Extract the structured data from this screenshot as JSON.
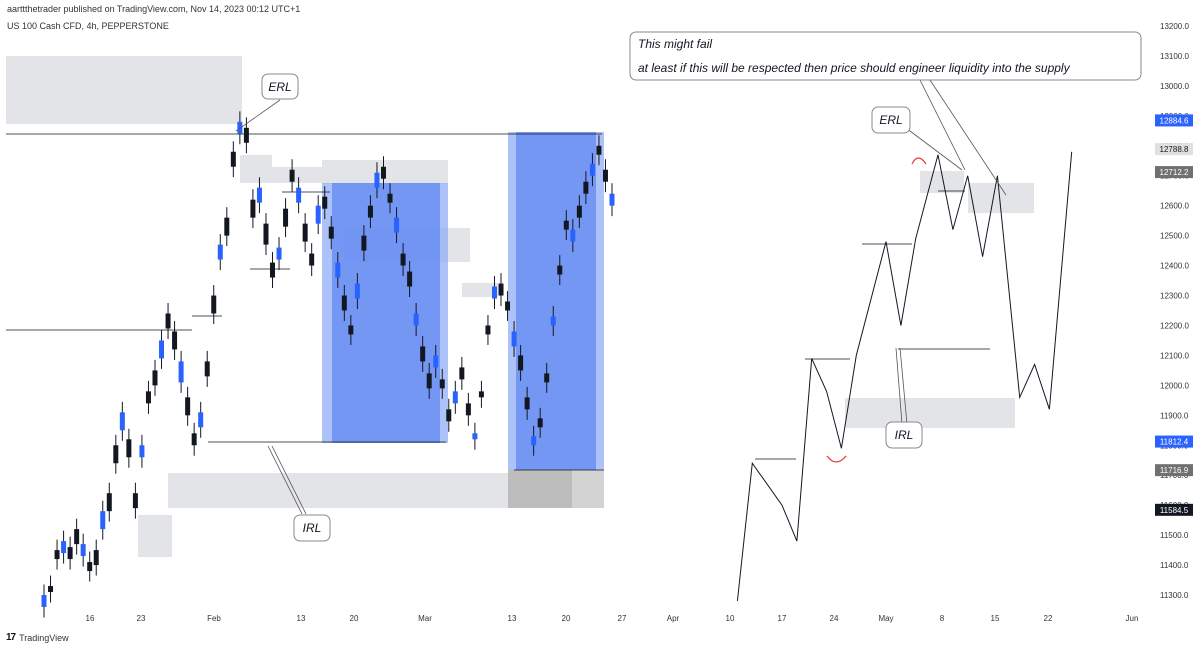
{
  "header": {
    "published": "aarttthetrader published on TradingView.com, Nov 14, 2023 00:12 UTC+1",
    "symbol": "US 100 Cash CFD, 4h, PEPPERSTONE"
  },
  "footer": {
    "logo": "17",
    "brand": "TradingView"
  },
  "colors": {
    "candle": "#131722",
    "zone_gray": "#e3e4e8",
    "zone_dark": "#bdbdbd",
    "range_blue": "#2962ff",
    "range_blue_light": "#90aef7",
    "highlight_tag": "#2962ff",
    "tag_gray": "#707070",
    "arc_red": "#e53935"
  },
  "chart_data": {
    "type": "line",
    "title": "US 100 Cash CFD, 4h, PEPPERSTONE",
    "x_ticks": [
      "16",
      "23",
      "Feb",
      "13",
      "20",
      "Mar",
      "13",
      "20",
      "27",
      "Apr",
      "10",
      "17",
      "24",
      "May",
      "8",
      "15",
      "22",
      "Jun"
    ],
    "y_ticks": [
      13200,
      13100,
      13000,
      12900,
      12800,
      12700,
      12600,
      12500,
      12400,
      12300,
      12200,
      12100,
      12000,
      11900,
      11800,
      11700,
      11600,
      11500,
      11400,
      11300
    ],
    "ylim": [
      11250,
      13250
    ],
    "price_tags": [
      {
        "value": 12884.6,
        "label": "12884.6",
        "style": "blue"
      },
      {
        "value": 12788.8,
        "label": "12788.8",
        "style": "lightgray"
      },
      {
        "value": 12712.2,
        "label": "12712.2",
        "style": "gray"
      },
      {
        "value": 11812.4,
        "label": "11812.4",
        "style": "blue"
      },
      {
        "value": 11716.9,
        "label": "11716.9",
        "style": "gray"
      },
      {
        "value": 11584.5,
        "label": "11584.5",
        "style": "black"
      }
    ],
    "series": [
      {
        "kind": "price",
        "points": [
          [
            11300,
            11260
          ],
          [
            11330,
            11310
          ],
          [
            11450,
            11420
          ],
          [
            11480,
            11440
          ],
          [
            11460,
            11420
          ],
          [
            11520,
            11470
          ],
          [
            11470,
            11430
          ],
          [
            11410,
            11380
          ],
          [
            11450,
            11400
          ],
          [
            11580,
            11520
          ],
          [
            11640,
            11580
          ],
          [
            11800,
            11740
          ],
          [
            11910,
            11850
          ],
          [
            11820,
            11760
          ],
          [
            11640,
            11590
          ],
          [
            11800,
            11760
          ],
          [
            11980,
            11940
          ],
          [
            12050,
            12000
          ],
          [
            12150,
            12090
          ],
          [
            12240,
            12190
          ],
          [
            12180,
            12120
          ],
          [
            12080,
            12010
          ],
          [
            11960,
            11900
          ],
          [
            11840,
            11800
          ],
          [
            11910,
            11860
          ],
          [
            12080,
            12030
          ],
          [
            12300,
            12240
          ],
          [
            12470,
            12420
          ],
          [
            12560,
            12500
          ],
          [
            12780,
            12730
          ],
          [
            12880,
            12840
          ],
          [
            12860,
            12810
          ],
          [
            12620,
            12560
          ],
          [
            12660,
            12610
          ],
          [
            12540,
            12470
          ],
          [
            12410,
            12360
          ],
          [
            12460,
            12420
          ],
          [
            12590,
            12530
          ],
          [
            12720,
            12680
          ],
          [
            12660,
            12610
          ],
          [
            12540,
            12480
          ],
          [
            12440,
            12400
          ],
          [
            12600,
            12540
          ],
          [
            12630,
            12590
          ],
          [
            12530,
            12490
          ],
          [
            12410,
            12360
          ],
          [
            12300,
            12250
          ],
          [
            12200,
            12170
          ],
          [
            12340,
            12290
          ],
          [
            12500,
            12450
          ],
          [
            12600,
            12560
          ],
          [
            12710,
            12660
          ],
          [
            12730,
            12690
          ],
          [
            12640,
            12610
          ],
          [
            12560,
            12510
          ],
          [
            12440,
            12400
          ],
          [
            12380,
            12330
          ],
          [
            12240,
            12200
          ],
          [
            12130,
            12080
          ],
          [
            12040,
            11990
          ],
          [
            12100,
            12060
          ],
          [
            12020,
            11990
          ],
          [
            11920,
            11880
          ],
          [
            11980,
            11940
          ],
          [
            12060,
            12020
          ],
          [
            11940,
            11900
          ],
          [
            11840,
            11820
          ],
          [
            11980,
            11960
          ],
          [
            12200,
            12170
          ],
          [
            12330,
            12290
          ],
          [
            12340,
            12300
          ],
          [
            12280,
            12250
          ],
          [
            12180,
            12130
          ],
          [
            12100,
            12050
          ],
          [
            11960,
            11920
          ],
          [
            11830,
            11800
          ],
          [
            11890,
            11860
          ],
          [
            12040,
            12010
          ],
          [
            12230,
            12200
          ],
          [
            12400,
            12370
          ],
          [
            12550,
            12520
          ],
          [
            12520,
            12480
          ],
          [
            12600,
            12560
          ],
          [
            12680,
            12640
          ],
          [
            12740,
            12700
          ],
          [
            12800,
            12770
          ],
          [
            12720,
            12680
          ],
          [
            12640,
            12600
          ]
        ]
      },
      {
        "kind": "projection",
        "points": [
          [
            "2023-04-11",
            11280
          ],
          [
            "2023-04-13",
            11740
          ],
          [
            "2023-04-17",
            11600
          ],
          [
            "2023-04-19",
            11480
          ],
          [
            "2023-04-21",
            12090
          ],
          [
            "2023-04-23",
            11980
          ],
          [
            "2023-04-25",
            11790
          ],
          [
            "2023-04-27",
            12100
          ],
          [
            "2023-05-01",
            12480
          ],
          [
            "2023-05-03",
            12200
          ],
          [
            "2023-05-05",
            12490
          ],
          [
            "2023-05-08",
            12770
          ],
          [
            "2023-05-10",
            12520
          ],
          [
            "2023-05-12",
            12700
          ],
          [
            "2023-05-14",
            12430
          ],
          [
            "2023-05-16",
            12700
          ],
          [
            "2023-05-19",
            11960
          ],
          [
            "2023-05-21",
            12070
          ],
          [
            "2023-05-23",
            11920
          ],
          [
            "2023-05-26",
            12780
          ]
        ]
      }
    ],
    "annotations": {
      "ERL_left": "ERL",
      "IRL_left": "IRL",
      "ERL_right": "ERL",
      "IRL_right": "IRL",
      "note_line1": "This might fail",
      "note_line2": "at least if this will be respected then price should engineer liquidity into the supply"
    },
    "grid": false
  }
}
